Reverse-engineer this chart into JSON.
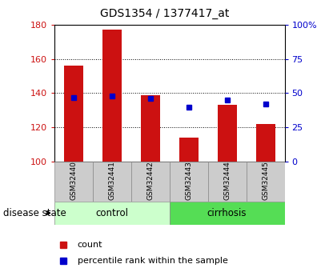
{
  "title": "GDS1354 / 1377417_at",
  "samples": [
    "GSM32440",
    "GSM32441",
    "GSM32442",
    "GSM32443",
    "GSM32444",
    "GSM32445"
  ],
  "counts": [
    156,
    177,
    139,
    114,
    133,
    122
  ],
  "percentiles": [
    47,
    48,
    46,
    40,
    45,
    42
  ],
  "ylim_left": [
    100,
    180
  ],
  "ylim_right": [
    0,
    100
  ],
  "yticks_left": [
    100,
    120,
    140,
    160,
    180
  ],
  "yticks_right": [
    0,
    25,
    50,
    75,
    100
  ],
  "groups": [
    {
      "label": "control",
      "indices": [
        0,
        1,
        2
      ]
    },
    {
      "label": "cirrhosis",
      "indices": [
        3,
        4,
        5
      ]
    }
  ],
  "bar_color": "#cc1111",
  "dot_color": "#0000cc",
  "bar_width": 0.5,
  "bg_color": "#ffffff",
  "left_tick_color": "#cc1111",
  "right_tick_color": "#0000cc",
  "grid_color": "#000000",
  "legend_items": [
    "count",
    "percentile rank within the sample"
  ],
  "disease_state_label": "disease state",
  "group_box_color_control": "#ccffcc",
  "group_box_color_cirrhosis": "#55dd55",
  "sample_box_color": "#cccccc"
}
